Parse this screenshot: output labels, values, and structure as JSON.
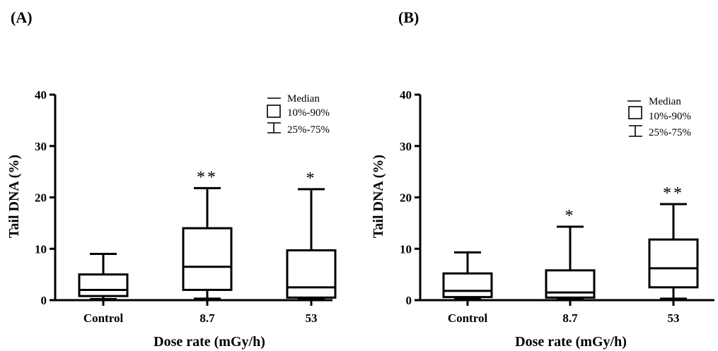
{
  "chart_data": [
    {
      "type": "box",
      "panel_label": "(A)",
      "xlabel": "Dose rate (mGy/h)",
      "ylabel": "Tail DNA (%)",
      "ylim": [
        0,
        40
      ],
      "yticks": [
        "0",
        "10",
        "20",
        "30",
        "40"
      ],
      "categories": [
        "Control",
        "8.7",
        "53"
      ],
      "boxes": [
        {
          "category": "Control",
          "whisker_low": 0.2,
          "q1": 0.8,
          "median": 2.0,
          "q3": 5.0,
          "whisker_high": 9.0,
          "significance": ""
        },
        {
          "category": "8.7",
          "whisker_low": 0.3,
          "q1": 2.0,
          "median": 6.5,
          "q3": 14.0,
          "whisker_high": 21.8,
          "significance": "**"
        },
        {
          "category": "53",
          "whisker_low": 0.2,
          "q1": 0.5,
          "median": 2.5,
          "q3": 9.7,
          "whisker_high": 21.6,
          "significance": "*"
        }
      ],
      "legend": {
        "items": [
          "Median",
          "10%-90%",
          "25%-75%"
        ],
        "position": "top-right"
      }
    },
    {
      "type": "box",
      "panel_label": "(B)",
      "xlabel": "Dose rate (mGy/h)",
      "ylabel": "Tail DNA (%)",
      "ylim": [
        0,
        40
      ],
      "yticks": [
        "0",
        "10",
        "20",
        "30",
        "40"
      ],
      "categories": [
        "Control",
        "8.7",
        "53"
      ],
      "boxes": [
        {
          "category": "Control",
          "whisker_low": 0.2,
          "q1": 0.6,
          "median": 1.8,
          "q3": 5.2,
          "whisker_high": 9.3,
          "significance": ""
        },
        {
          "category": "8.7",
          "whisker_low": 0.2,
          "q1": 0.5,
          "median": 1.5,
          "q3": 5.8,
          "whisker_high": 14.3,
          "significance": "*"
        },
        {
          "category": "53",
          "whisker_low": 0.3,
          "q1": 2.5,
          "median": 6.2,
          "q3": 11.8,
          "whisker_high": 18.7,
          "significance": "**"
        }
      ],
      "legend": {
        "items": [
          "Median",
          "10%-90%",
          "25%-75%"
        ],
        "position": "top-right"
      }
    }
  ]
}
